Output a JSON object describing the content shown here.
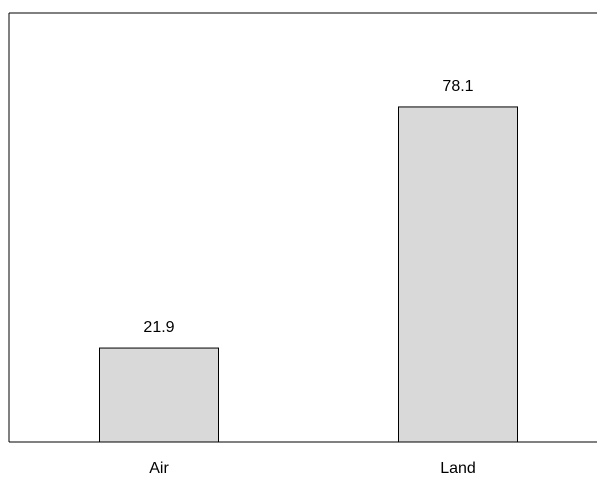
{
  "chart_data": {
    "type": "bar",
    "title": "",
    "xlabel": "",
    "ylabel": "",
    "categories": [
      "Air",
      "Land"
    ],
    "values": [
      21.9,
      78.1
    ],
    "value_labels": [
      "21.9",
      "78.1"
    ],
    "ylim": [
      0,
      100
    ],
    "grid": false,
    "legend": "none",
    "colors": {
      "bar_fill": "#d9d9d9",
      "bar_stroke": "#000000",
      "axis": "#000000"
    }
  }
}
